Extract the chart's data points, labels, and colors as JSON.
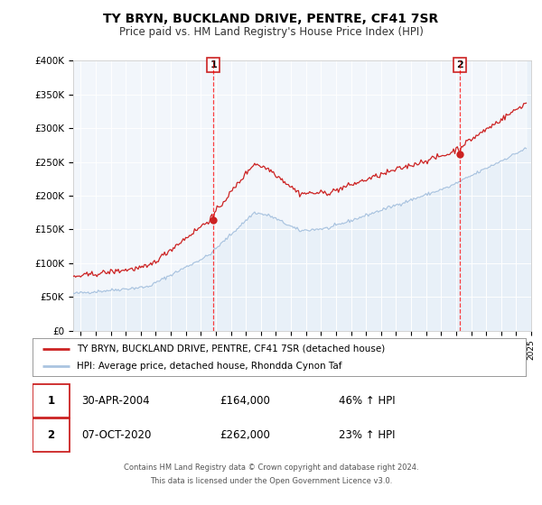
{
  "title": "TY BRYN, BUCKLAND DRIVE, PENTRE, CF41 7SR",
  "subtitle": "Price paid vs. HM Land Registry's House Price Index (HPI)",
  "sale1_date": "30-APR-2004",
  "sale1_price": 164000,
  "sale1_pct": "46% ↑ HPI",
  "sale2_date": "07-OCT-2020",
  "sale2_price": 262000,
  "sale2_pct": "23% ↑ HPI",
  "legend1": "TY BRYN, BUCKLAND DRIVE, PENTRE, CF41 7SR (detached house)",
  "legend2": "HPI: Average price, detached house, Rhondda Cynon Taf",
  "footer1": "Contains HM Land Registry data © Crown copyright and database right 2024.",
  "footer2": "This data is licensed under the Open Government Licence v3.0.",
  "hpi_color": "#aac4e0",
  "price_color": "#cc2222",
  "plot_bg": "#e8f0f8",
  "ylim": [
    0,
    400000
  ],
  "yticks": [
    0,
    50000,
    100000,
    150000,
    200000,
    250000,
    300000,
    350000,
    400000
  ],
  "ylabel_labels": [
    "£0",
    "£50K",
    "£100K",
    "£150K",
    "£200K",
    "£250K",
    "£300K",
    "£350K",
    "£400K"
  ],
  "xstart_year": 1995,
  "xend_year": 2025
}
